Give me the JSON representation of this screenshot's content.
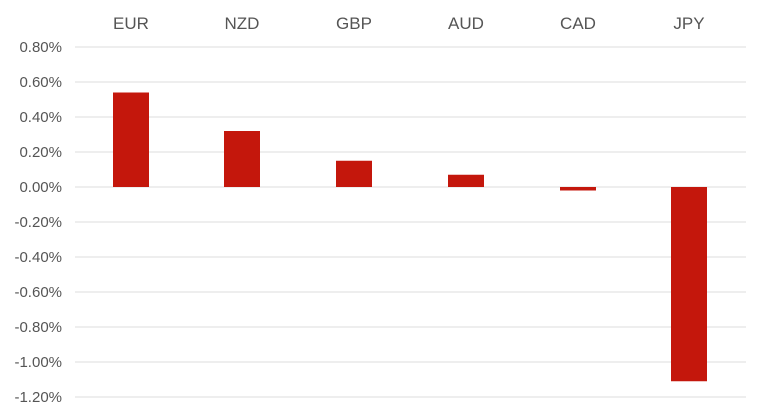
{
  "chart_data": {
    "type": "bar",
    "title": "",
    "xlabel": "",
    "ylabel": "",
    "categories": [
      "EUR",
      "NZD",
      "GBP",
      "AUD",
      "CAD",
      "JPY"
    ],
    "values": [
      0.54,
      0.32,
      0.15,
      0.07,
      -0.02,
      -1.11
    ],
    "yticks": [
      0.8,
      0.6,
      0.4,
      0.2,
      0.0,
      -0.2,
      -0.4,
      -0.6,
      -0.8,
      -1.0,
      -1.2
    ],
    "ytick_labels": [
      "0.80%",
      "0.60%",
      "0.40%",
      "0.20%",
      "0.00%",
      "-0.20%",
      "-0.40%",
      "-0.60%",
      "-0.80%",
      "-1.00%",
      "-1.20%"
    ],
    "ylim": [
      -1.2,
      0.8
    ],
    "grid": true,
    "category_axis_position": "top",
    "legend": "none",
    "bar_color": "#c4170c"
  }
}
